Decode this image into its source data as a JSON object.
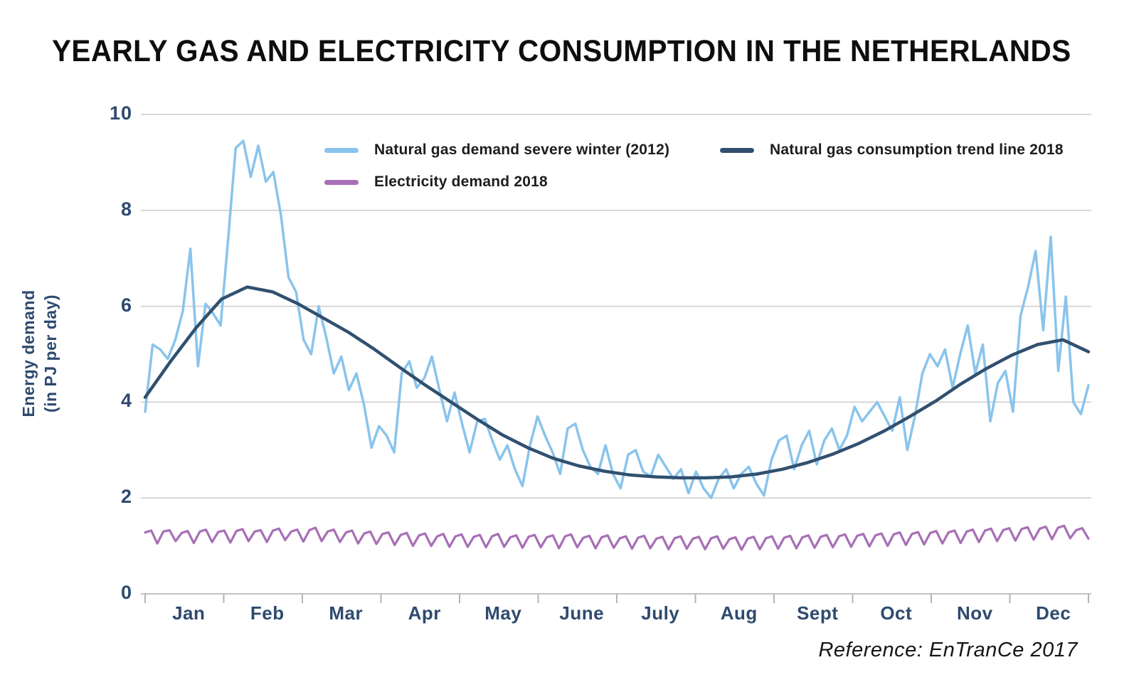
{
  "page": {
    "title": "YEARLY GAS AND ELECTRICITY CONSUMPTION IN THE NETHERLANDS",
    "reference": "Reference: EnTranCe 2017"
  },
  "legend": {
    "items": [
      {
        "label": "Natural gas demand severe winter (2012)",
        "color": "#89c4ec"
      },
      {
        "label": "Natural gas consumption trend line 2018",
        "color": "#31506f"
      },
      {
        "label": "Electricity demand 2018",
        "color": "#a76fb5"
      }
    ]
  },
  "colors": {
    "axis_text": "#2e4a6e",
    "gridline": "#cbcbcb",
    "axis_line": "#c3c3c3",
    "tick": "#b5b5b5",
    "title_text": "#0e0e0e",
    "gas_2012": "#89c4ec",
    "trend_2018": "#31506f",
    "electricity_2018": "#a76fb5"
  },
  "chart_data": {
    "type": "line",
    "title": "YEARLY GAS AND ELECTRICITY CONSUMPTION IN THE NETHERLANDS",
    "xlabel": "",
    "ylabel": "Energy demand (in PJ per day)",
    "ylabel_line1": "Energy demand",
    "ylabel_line2": "(in PJ per day)",
    "ylim": [
      0,
      10
    ],
    "yticks": [
      0,
      2,
      4,
      6,
      8,
      10
    ],
    "x_categories": [
      "Jan",
      "Feb",
      "Mar",
      "Apr",
      "May",
      "June",
      "July",
      "Aug",
      "Sept",
      "Oct",
      "Nov",
      "Dec"
    ],
    "grid": "horizontal gridlines only",
    "legend_position": "top inside plot, two rows",
    "reference": "Reference: EnTranCe 2017",
    "series": [
      {
        "name": "Natural gas demand severe winter (2012)",
        "color": "#89c4ec",
        "width": 3.5,
        "unit": "PJ per day",
        "x_span": "Jan 1 - Dec 31, evenly spaced",
        "values": [
          3.8,
          5.2,
          5.1,
          4.9,
          5.3,
          5.9,
          7.2,
          4.75,
          6.05,
          5.85,
          5.6,
          7.4,
          9.3,
          9.45,
          8.7,
          9.35,
          8.6,
          8.8,
          7.9,
          6.6,
          6.3,
          5.3,
          5.0,
          6.0,
          5.35,
          4.6,
          4.95,
          4.25,
          4.6,
          3.95,
          3.05,
          3.5,
          3.3,
          2.95,
          4.6,
          4.85,
          4.3,
          4.5,
          4.95,
          4.25,
          3.6,
          4.2,
          3.55,
          2.95,
          3.6,
          3.65,
          3.2,
          2.8,
          3.1,
          2.6,
          2.25,
          3.1,
          3.7,
          3.3,
          2.95,
          2.5,
          3.45,
          3.55,
          3.0,
          2.65,
          2.5,
          3.1,
          2.5,
          2.2,
          2.9,
          3.0,
          2.55,
          2.45,
          2.9,
          2.65,
          2.4,
          2.6,
          2.1,
          2.55,
          2.2,
          2.0,
          2.4,
          2.6,
          2.2,
          2.5,
          2.65,
          2.3,
          2.05,
          2.8,
          3.2,
          3.3,
          2.6,
          3.1,
          3.4,
          2.7,
          3.2,
          3.45,
          3.0,
          3.3,
          3.9,
          3.6,
          3.8,
          4.0,
          3.7,
          3.4,
          4.1,
          3.0,
          3.7,
          4.6,
          5.0,
          4.75,
          5.1,
          4.3,
          5.0,
          5.6,
          4.6,
          5.2,
          3.6,
          4.4,
          4.65,
          3.8,
          5.8,
          6.4,
          7.15,
          5.5,
          7.45,
          4.65,
          6.2,
          4.0,
          3.75,
          4.35
        ]
      },
      {
        "name": "Natural gas consumption trend line 2018",
        "color": "#31506f",
        "width": 4.5,
        "unit": "PJ per day",
        "x_span": "Jan 1 - Dec 31, evenly spaced",
        "values": [
          4.1,
          4.85,
          5.55,
          6.15,
          6.4,
          6.3,
          6.05,
          5.75,
          5.45,
          5.1,
          4.72,
          4.35,
          4.0,
          3.65,
          3.32,
          3.05,
          2.83,
          2.67,
          2.56,
          2.48,
          2.44,
          2.42,
          2.42,
          2.44,
          2.5,
          2.6,
          2.74,
          2.92,
          3.14,
          3.4,
          3.7,
          4.02,
          4.38,
          4.7,
          4.98,
          5.2,
          5.3,
          5.05
        ]
      },
      {
        "name": "Electricity demand 2018",
        "color": "#a76fb5",
        "width": 3.2,
        "unit": "PJ per day",
        "x_span": "Jan 1 - Dec 31, evenly spaced (weekly sawtooth: weekday high, weekend dip)",
        "values": [
          1.28,
          1.32,
          1.05,
          1.3,
          1.33,
          1.1,
          1.27,
          1.31,
          1.06,
          1.3,
          1.34,
          1.08,
          1.29,
          1.32,
          1.07,
          1.31,
          1.35,
          1.1,
          1.3,
          1.33,
          1.08,
          1.32,
          1.36,
          1.12,
          1.3,
          1.34,
          1.09,
          1.33,
          1.38,
          1.1,
          1.3,
          1.34,
          1.08,
          1.28,
          1.32,
          1.05,
          1.26,
          1.3,
          1.04,
          1.25,
          1.28,
          1.02,
          1.23,
          1.27,
          1.0,
          1.22,
          1.26,
          1.0,
          1.2,
          1.25,
          0.98,
          1.2,
          1.24,
          0.98,
          1.19,
          1.23,
          0.97,
          1.2,
          1.25,
          0.98,
          1.18,
          1.22,
          0.96,
          1.19,
          1.23,
          0.97,
          1.18,
          1.22,
          0.95,
          1.2,
          1.24,
          0.97,
          1.17,
          1.21,
          0.95,
          1.18,
          1.22,
          0.96,
          1.16,
          1.2,
          0.94,
          1.17,
          1.21,
          0.95,
          1.15,
          1.19,
          0.93,
          1.16,
          1.2,
          0.94,
          1.15,
          1.19,
          0.93,
          1.16,
          1.2,
          0.94,
          1.14,
          1.18,
          0.92,
          1.15,
          1.19,
          0.93,
          1.16,
          1.2,
          0.94,
          1.17,
          1.21,
          0.95,
          1.18,
          1.22,
          0.96,
          1.19,
          1.23,
          0.97,
          1.2,
          1.24,
          0.98,
          1.21,
          1.25,
          0.99,
          1.22,
          1.26,
          1.0,
          1.24,
          1.28,
          1.02,
          1.25,
          1.29,
          1.03,
          1.27,
          1.31,
          1.05,
          1.28,
          1.32,
          1.06,
          1.3,
          1.34,
          1.08,
          1.32,
          1.36,
          1.1,
          1.33,
          1.37,
          1.11,
          1.35,
          1.39,
          1.13,
          1.36,
          1.4,
          1.14,
          1.38,
          1.42,
          1.16,
          1.33,
          1.37,
          1.15
        ]
      }
    ]
  }
}
